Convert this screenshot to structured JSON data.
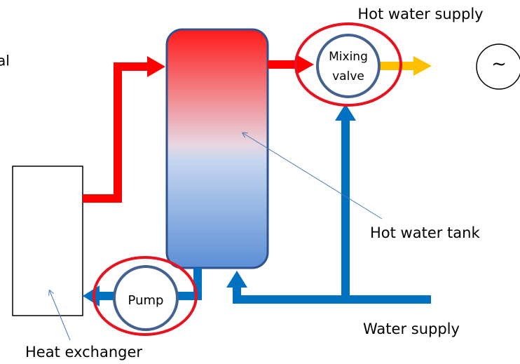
{
  "labels": {
    "cropped_left": "al",
    "hot_water_supply": "Hot water supply",
    "mixing_valve_line1": "Mixing",
    "mixing_valve_line2": "valve",
    "ac_symbol": "~",
    "hot_water_tank": "Hot water tank",
    "pump": "Pump",
    "water_supply": "Water supply",
    "heat_exchanger": "Heat exchanger"
  }
}
